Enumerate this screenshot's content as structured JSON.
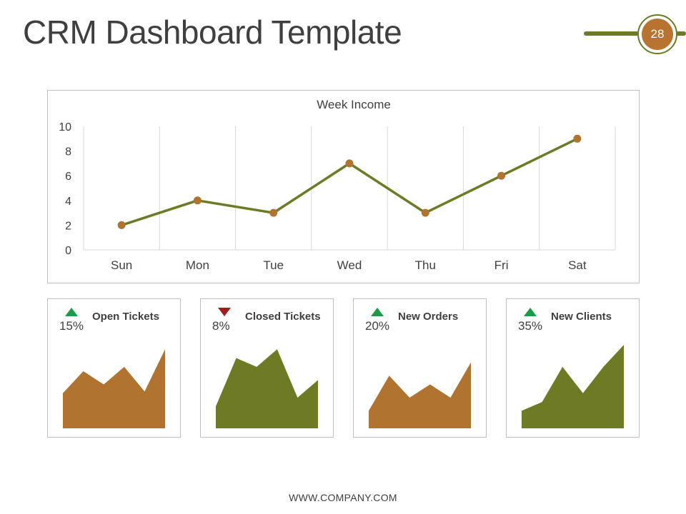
{
  "header": {
    "title": "CRM Dashboard Template",
    "page_number": "28"
  },
  "colors": {
    "olive": "#6f7a25",
    "orange": "#b07330",
    "up": "#1f9a4a",
    "down": "#a31c1c"
  },
  "chart_data": [
    {
      "type": "line",
      "title": "Week Income",
      "categories": [
        "Sun",
        "Mon",
        "Tue",
        "Wed",
        "Thu",
        "Fri",
        "Sat"
      ],
      "values": [
        2,
        4,
        3,
        7,
        3,
        6,
        9
      ],
      "ylim": [
        0,
        10
      ],
      "yticks": [
        "0",
        "2",
        "4",
        "6",
        "8",
        "10"
      ],
      "grid": "vertical",
      "line_color": "#6f7a25",
      "marker_color": "#b07330"
    },
    {
      "type": "area",
      "values": [
        4,
        6.5,
        5,
        7,
        4.2,
        9
      ],
      "ylim": [
        0,
        10
      ],
      "color": "#b07330"
    },
    {
      "type": "area",
      "values": [
        2.5,
        8,
        7,
        9,
        3.5,
        5.5
      ],
      "ylim": [
        0,
        10
      ],
      "color": "#6f7a25"
    },
    {
      "type": "area",
      "values": [
        2,
        6,
        3.5,
        5,
        3.5,
        7.5
      ],
      "ylim": [
        0,
        10
      ],
      "color": "#b07330"
    },
    {
      "type": "area",
      "values": [
        2,
        3,
        7,
        4,
        7,
        9.5
      ],
      "ylim": [
        0,
        10
      ],
      "color": "#6f7a25"
    }
  ],
  "kpis": [
    {
      "label": "Open Tickets",
      "percent": "15%",
      "trend": "up"
    },
    {
      "label": "Closed Tickets",
      "percent": "8%",
      "trend": "down"
    },
    {
      "label": "New Orders",
      "percent": "20%",
      "trend": "up"
    },
    {
      "label": "New Clients",
      "percent": "35%",
      "trend": "up"
    }
  ],
  "footer": {
    "text": "WWW.COMPANY.COM"
  }
}
